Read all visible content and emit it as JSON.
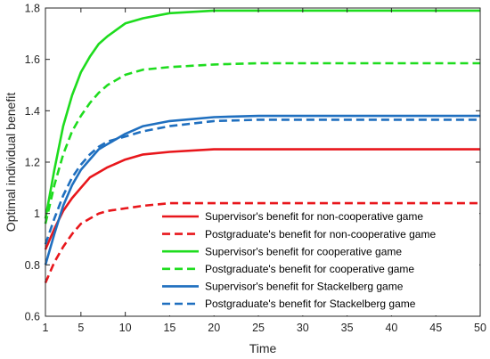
{
  "chart_data": {
    "type": "line",
    "title": "",
    "xlabel": "Time",
    "ylabel": "Optimal individual benefit",
    "xlim": [
      1,
      50
    ],
    "ylim": [
      0.6,
      1.8
    ],
    "xticks": [
      1,
      5,
      10,
      15,
      20,
      25,
      30,
      35,
      40,
      45,
      50
    ],
    "yticks": [
      0.6,
      0.8,
      1.0,
      1.2,
      1.4,
      1.6,
      1.8
    ],
    "xtick_labels": [
      "1",
      "5",
      "10",
      "15",
      "20",
      "25",
      "30",
      "35",
      "40",
      "45",
      "50"
    ],
    "ytick_labels": [
      "0.6",
      "0.8",
      "1",
      "1.2",
      "1.4",
      "1.6",
      "1.8"
    ],
    "grid": false,
    "legend_position": "bottom-right",
    "x": [
      1,
      2,
      3,
      4,
      5,
      6,
      7,
      8,
      10,
      12,
      15,
      20,
      25,
      30,
      35,
      40,
      45,
      50
    ],
    "series": [
      {
        "name": "Supervisor's benefit for non-cooperative game",
        "color": "#e8161b",
        "dash": "solid",
        "values": [
          0.86,
          0.94,
          1.01,
          1.06,
          1.1,
          1.14,
          1.16,
          1.18,
          1.21,
          1.23,
          1.24,
          1.25,
          1.25,
          1.25,
          1.25,
          1.25,
          1.25,
          1.25
        ]
      },
      {
        "name": "Postgraduate's benefit for non-cooperative game",
        "color": "#e8161b",
        "dash": "dashed",
        "values": [
          0.73,
          0.81,
          0.87,
          0.92,
          0.96,
          0.98,
          1.0,
          1.01,
          1.02,
          1.03,
          1.04,
          1.04,
          1.04,
          1.04,
          1.04,
          1.04,
          1.04,
          1.04
        ]
      },
      {
        "name": "Supervisor's benefit for cooperative game",
        "color": "#1edc1e",
        "dash": "solid",
        "values": [
          0.98,
          1.17,
          1.34,
          1.46,
          1.55,
          1.61,
          1.66,
          1.69,
          1.74,
          1.76,
          1.78,
          1.79,
          1.79,
          1.79,
          1.79,
          1.79,
          1.79,
          1.79
        ]
      },
      {
        "name": "Postgraduate's benefit for cooperative game",
        "color": "#1edc1e",
        "dash": "dashed",
        "values": [
          0.96,
          1.11,
          1.23,
          1.32,
          1.38,
          1.43,
          1.47,
          1.5,
          1.54,
          1.56,
          1.57,
          1.58,
          1.585,
          1.585,
          1.585,
          1.585,
          1.585,
          1.585
        ]
      },
      {
        "name": "Supervisor's benefit for Stackelberg game",
        "color": "#1f6fbf",
        "dash": "solid",
        "values": [
          0.8,
          0.92,
          1.03,
          1.11,
          1.17,
          1.21,
          1.25,
          1.27,
          1.31,
          1.34,
          1.36,
          1.375,
          1.38,
          1.38,
          1.38,
          1.38,
          1.38,
          1.38
        ]
      },
      {
        "name": "Postgraduate's benefit for Stackelberg game",
        "color": "#1f6fbf",
        "dash": "dashed",
        "values": [
          0.88,
          0.98,
          1.07,
          1.14,
          1.19,
          1.23,
          1.26,
          1.28,
          1.3,
          1.32,
          1.34,
          1.36,
          1.365,
          1.365,
          1.365,
          1.365,
          1.365,
          1.365
        ]
      }
    ]
  }
}
